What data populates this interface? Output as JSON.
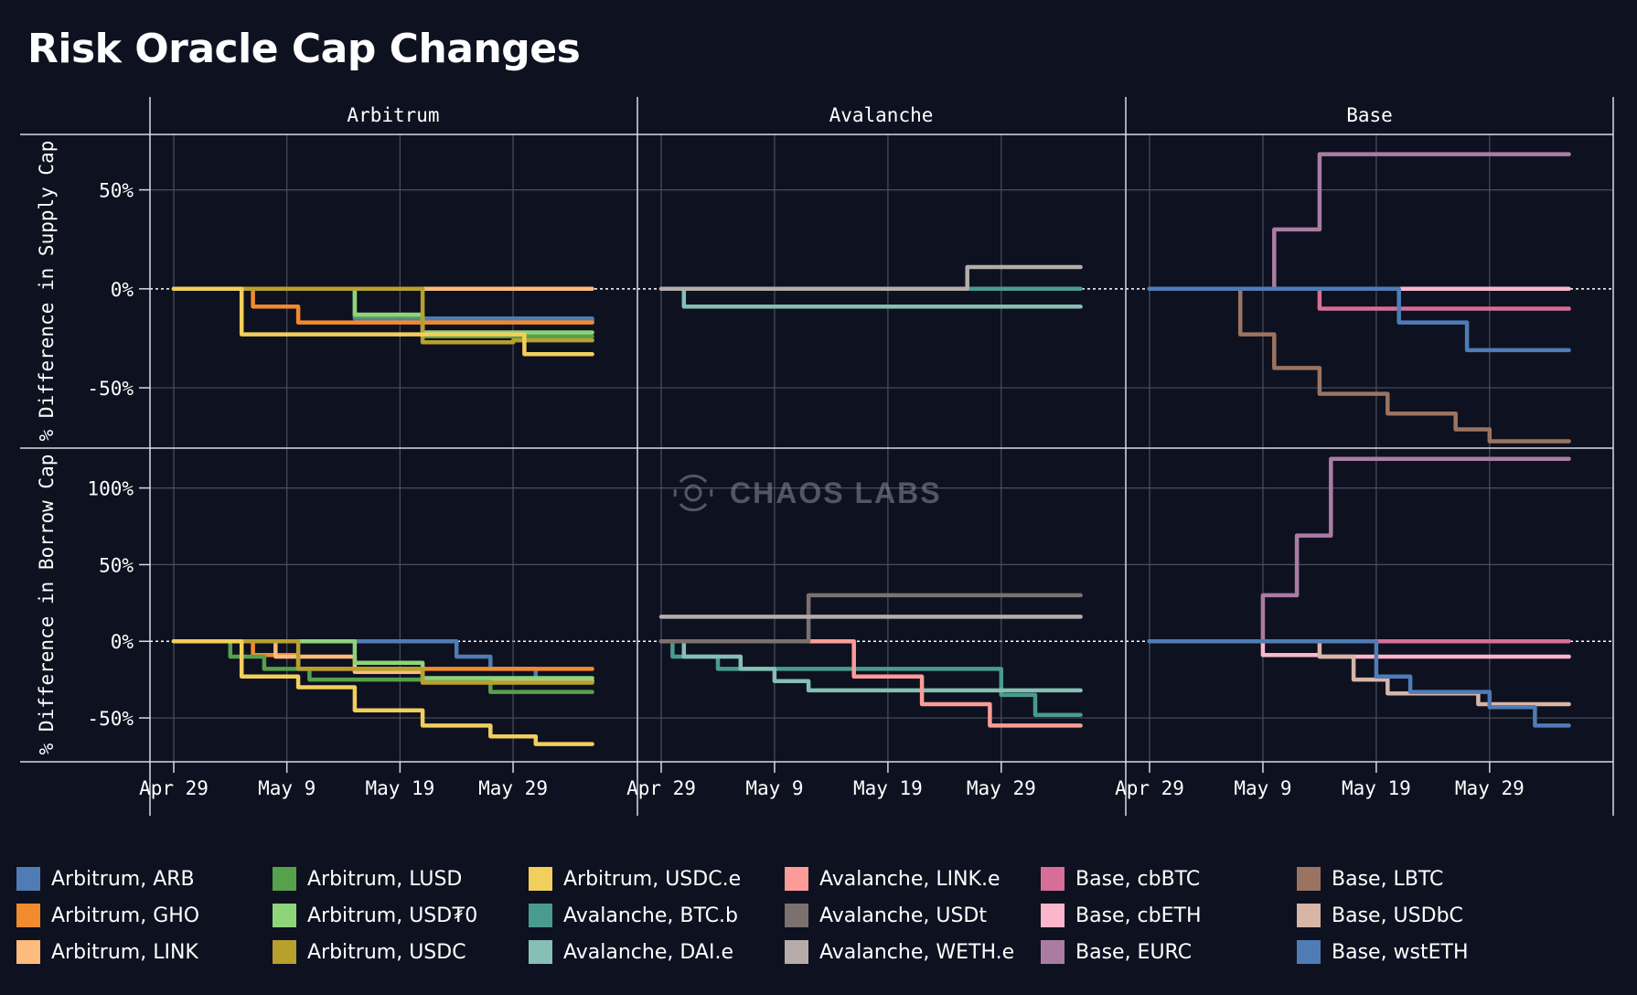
{
  "page": {
    "title": "Risk Oracle Cap Changes"
  },
  "watermark": {
    "text": "CHAOS LABS",
    "icon": "chaos-labs-logo-icon"
  },
  "chart_data": {
    "type": "line",
    "title": "Risk Oracle Cap Changes",
    "step_lines": true,
    "columns": [
      "Arbitrum",
      "Avalanche",
      "Base"
    ],
    "rows": [
      {
        "ylabel": "% Difference in Supply Cap",
        "ylim": [
          -80,
          78
        ],
        "yticks": [
          50,
          0,
          -50
        ],
        "ytick_labels": [
          "50%",
          "0%",
          "-50%"
        ]
      },
      {
        "ylabel": "% Difference in Borrow Cap",
        "ylim": [
          -78,
          126
        ],
        "yticks": [
          100,
          50,
          0,
          -50
        ],
        "ytick_labels": [
          "100%",
          "50%",
          "0%",
          "-50%"
        ]
      }
    ],
    "xlim": [
      "2025-04-29",
      "2025-06-06"
    ],
    "xticks": [
      "2025-04-29",
      "2025-05-09",
      "2025-05-19",
      "2025-05-29"
    ],
    "xtick_labels": [
      "Apr 29",
      "May 9",
      "May 19",
      "May 29"
    ],
    "zero_line": "dotted",
    "grid": true,
    "legend_position": "bottom",
    "legend": [
      {
        "label": "Arbitrum, ARB",
        "color": "#4f7cb5"
      },
      {
        "label": "Arbitrum, GHO",
        "color": "#f28a2e"
      },
      {
        "label": "Arbitrum, LINK",
        "color": "#fdbb7d"
      },
      {
        "label": "Arbitrum, LUSD",
        "color": "#56a14b"
      },
      {
        "label": "Arbitrum, USD₮0",
        "color": "#8dd47a"
      },
      {
        "label": "Arbitrum, USDC",
        "color": "#b8a02f"
      },
      {
        "label": "Arbitrum, USDC.e",
        "color": "#f2cf5c"
      },
      {
        "label": "Avalanche, BTC.b",
        "color": "#4a9b8f"
      },
      {
        "label": "Avalanche, DAI.e",
        "color": "#85bfb5"
      },
      {
        "label": "Avalanche, LINK.e",
        "color": "#fb9c99"
      },
      {
        "label": "Avalanche, USDt",
        "color": "#7b716e"
      },
      {
        "label": "Avalanche, WETH.e",
        "color": "#b5aca9"
      },
      {
        "label": "Base, cbBTC",
        "color": "#d66e98"
      },
      {
        "label": "Base, cbETH",
        "color": "#fbb6cb"
      },
      {
        "label": "Base, EURC",
        "color": "#ab7ca3"
      },
      {
        "label": "Base, LBTC",
        "color": "#9b7461"
      },
      {
        "label": "Base, USDbC",
        "color": "#d8b5a6"
      },
      {
        "label": "Base, wstETH",
        "color": "#4f7cb5"
      }
    ],
    "panels": [
      {
        "row": 0,
        "col": 0,
        "series": [
          {
            "name": "Arbitrum, ARB",
            "x": [
              "2025-04-29",
              "2025-05-15",
              "2025-06-05"
            ],
            "y": [
              0,
              -15,
              -16
            ]
          },
          {
            "name": "Arbitrum, GHO",
            "x": [
              "2025-04-29",
              "2025-05-06",
              "2025-05-10",
              "2025-06-05"
            ],
            "y": [
              0,
              -9,
              -17,
              -17
            ]
          },
          {
            "name": "Arbitrum, LINK",
            "x": [
              "2025-04-29",
              "2025-06-05"
            ],
            "y": [
              0,
              0
            ]
          },
          {
            "name": "Arbitrum, LUSD",
            "x": [
              "2025-04-29",
              "2025-05-15",
              "2025-05-21",
              "2025-06-05"
            ],
            "y": [
              0,
              -14,
              -24,
              -24
            ]
          },
          {
            "name": "Arbitrum, USD₮0",
            "x": [
              "2025-04-29",
              "2025-05-15",
              "2025-05-21",
              "2025-06-05"
            ],
            "y": [
              0,
              -13,
              -22,
              -22
            ]
          },
          {
            "name": "Arbitrum, USDC",
            "x": [
              "2025-04-29",
              "2025-05-21",
              "2025-05-29",
              "2025-06-05"
            ],
            "y": [
              0,
              -27,
              -26,
              -26
            ]
          },
          {
            "name": "Arbitrum, USDC.e",
            "x": [
              "2025-04-29",
              "2025-05-05",
              "2025-05-30",
              "2025-06-05"
            ],
            "y": [
              0,
              -23,
              -33,
              -33
            ]
          }
        ]
      },
      {
        "row": 0,
        "col": 1,
        "series": [
          {
            "name": "Avalanche, BTC.b",
            "x": [
              "2025-04-29",
              "2025-06-05"
            ],
            "y": [
              0,
              0
            ]
          },
          {
            "name": "Avalanche, DAI.e",
            "x": [
              "2025-04-29",
              "2025-05-01",
              "2025-06-05"
            ],
            "y": [
              0,
              -9,
              -9
            ]
          },
          {
            "name": "Avalanche, WETH.e",
            "x": [
              "2025-04-29",
              "2025-05-26",
              "2025-06-05"
            ],
            "y": [
              0,
              11,
              11
            ]
          }
        ]
      },
      {
        "row": 0,
        "col": 2,
        "series": [
          {
            "name": "Base, cbBTC",
            "x": [
              "2025-04-29",
              "2025-05-14",
              "2025-06-05"
            ],
            "y": [
              0,
              -10,
              -10
            ]
          },
          {
            "name": "Base, cbETH",
            "x": [
              "2025-04-29",
              "2025-06-05"
            ],
            "y": [
              0,
              0
            ]
          },
          {
            "name": "Base, EURC",
            "x": [
              "2025-04-29",
              "2025-05-10",
              "2025-05-14",
              "2025-06-05"
            ],
            "y": [
              0,
              30,
              68,
              68
            ]
          },
          {
            "name": "Base, LBTC",
            "x": [
              "2025-04-29",
              "2025-05-07",
              "2025-05-10",
              "2025-05-14",
              "2025-05-20",
              "2025-05-26",
              "2025-05-29",
              "2025-06-05"
            ],
            "y": [
              0,
              -23,
              -40,
              -53,
              -63,
              -71,
              -77,
              -77
            ]
          },
          {
            "name": "Base, wstETH",
            "x": [
              "2025-04-29",
              "2025-05-21",
              "2025-05-27",
              "2025-06-05"
            ],
            "y": [
              0,
              -17,
              -31,
              -31
            ]
          }
        ]
      },
      {
        "row": 1,
        "col": 0,
        "series": [
          {
            "name": "Arbitrum, ARB",
            "x": [
              "2025-04-29",
              "2025-05-24",
              "2025-05-27",
              "2025-05-31",
              "2025-06-05"
            ],
            "y": [
              0,
              -10,
              -18,
              -26,
              -26
            ]
          },
          {
            "name": "Arbitrum, GHO",
            "x": [
              "2025-04-29",
              "2025-05-06",
              "2025-05-10",
              "2025-06-05"
            ],
            "y": [
              0,
              -9,
              -18,
              -18
            ]
          },
          {
            "name": "Arbitrum, LINK",
            "x": [
              "2025-04-29",
              "2025-05-08",
              "2025-05-15",
              "2025-05-21",
              "2025-06-05"
            ],
            "y": [
              0,
              -10,
              -20,
              -26,
              -26
            ]
          },
          {
            "name": "Arbitrum, LUSD",
            "x": [
              "2025-04-29",
              "2025-05-04",
              "2025-05-07",
              "2025-05-11",
              "2025-05-27",
              "2025-06-05"
            ],
            "y": [
              0,
              -10,
              -18,
              -25,
              -33,
              -33
            ]
          },
          {
            "name": "Arbitrum, USD₮0",
            "x": [
              "2025-04-29",
              "2025-05-15",
              "2025-05-21",
              "2025-06-05"
            ],
            "y": [
              0,
              -14,
              -24,
              -24
            ]
          },
          {
            "name": "Arbitrum, USDC",
            "x": [
              "2025-04-29",
              "2025-05-10",
              "2025-05-21",
              "2025-06-05"
            ],
            "y": [
              0,
              -18,
              -27,
              -27
            ]
          },
          {
            "name": "Arbitrum, USDC.e",
            "x": [
              "2025-04-29",
              "2025-05-05",
              "2025-05-10",
              "2025-05-15",
              "2025-05-21",
              "2025-05-27",
              "2025-05-31",
              "2025-06-05"
            ],
            "y": [
              0,
              -23,
              -30,
              -45,
              -55,
              -62,
              -67,
              -67
            ]
          }
        ]
      },
      {
        "row": 1,
        "col": 1,
        "series": [
          {
            "name": "Avalanche, BTC.b",
            "x": [
              "2025-04-29",
              "2025-04-30",
              "2025-05-04",
              "2025-05-29",
              "2025-06-01",
              "2025-06-05"
            ],
            "y": [
              0,
              -10,
              -18,
              -35,
              -48,
              -48
            ]
          },
          {
            "name": "Avalanche, DAI.e",
            "x": [
              "2025-04-29",
              "2025-05-01",
              "2025-05-06",
              "2025-05-09",
              "2025-05-12",
              "2025-06-05"
            ],
            "y": [
              0,
              -10,
              -18,
              -26,
              -32,
              -32
            ]
          },
          {
            "name": "Avalanche, LINK.e",
            "x": [
              "2025-04-29",
              "2025-05-16",
              "2025-05-22",
              "2025-05-28",
              "2025-06-05"
            ],
            "y": [
              0,
              -23,
              -41,
              -55,
              -55
            ]
          },
          {
            "name": "Avalanche, USDt",
            "x": [
              "2025-04-29",
              "2025-05-12",
              "2025-06-05"
            ],
            "y": [
              0,
              30,
              30
            ]
          },
          {
            "name": "Avalanche, WETH.e",
            "x": [
              "2025-04-29",
              "2025-06-05"
            ],
            "y": [
              16,
              16
            ]
          }
        ]
      },
      {
        "row": 1,
        "col": 2,
        "series": [
          {
            "name": "Base, cbBTC",
            "x": [
              "2025-04-29",
              "2025-06-05"
            ],
            "y": [
              0,
              0
            ]
          },
          {
            "name": "Base, cbETH",
            "x": [
              "2025-04-29",
              "2025-05-09",
              "2025-05-14",
              "2025-06-05"
            ],
            "y": [
              0,
              -9,
              -10,
              -10
            ]
          },
          {
            "name": "Base, EURC",
            "x": [
              "2025-04-29",
              "2025-05-09",
              "2025-05-12",
              "2025-05-15",
              "2025-06-05"
            ],
            "y": [
              0,
              30,
              69,
              119,
              119
            ]
          },
          {
            "name": "Base, USDbC",
            "x": [
              "2025-04-29",
              "2025-05-14",
              "2025-05-17",
              "2025-05-20",
              "2025-05-28",
              "2025-06-05"
            ],
            "y": [
              0,
              -10,
              -25,
              -34,
              -41,
              -41
            ]
          },
          {
            "name": "Base, wstETH",
            "x": [
              "2025-04-29",
              "2025-05-19",
              "2025-05-22",
              "2025-05-29",
              "2025-06-02",
              "2025-06-05"
            ],
            "y": [
              0,
              -23,
              -33,
              -43,
              -55,
              -55
            ]
          }
        ]
      }
    ]
  }
}
